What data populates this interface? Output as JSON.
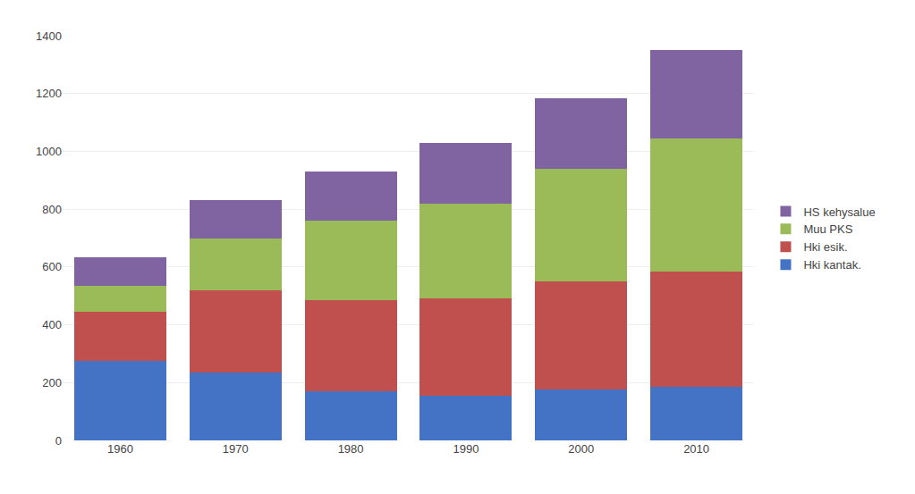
{
  "chart_data": {
    "type": "bar",
    "stacked": true,
    "categories": [
      "1960",
      "1970",
      "1980",
      "1990",
      "2000",
      "2010"
    ],
    "series": [
      {
        "name": "Hki kantak.",
        "color": "#4472C4",
        "values": [
          275,
          235,
          170,
          155,
          175,
          185
        ]
      },
      {
        "name": "Hki esik.",
        "color": "#C0504D",
        "values": [
          170,
          285,
          315,
          335,
          375,
          400
        ]
      },
      {
        "name": "Muu PKS",
        "color": "#9BBB59",
        "values": [
          90,
          180,
          275,
          330,
          390,
          460
        ]
      },
      {
        "name": "HS kehysalue",
        "color": "#8064A2",
        "values": [
          100,
          130,
          170,
          210,
          245,
          305
        ]
      }
    ],
    "ylim": [
      0,
      1400
    ],
    "yticks": [
      0,
      200,
      400,
      600,
      800,
      1000,
      1200,
      1400
    ],
    "grid": true,
    "legend": "right"
  }
}
